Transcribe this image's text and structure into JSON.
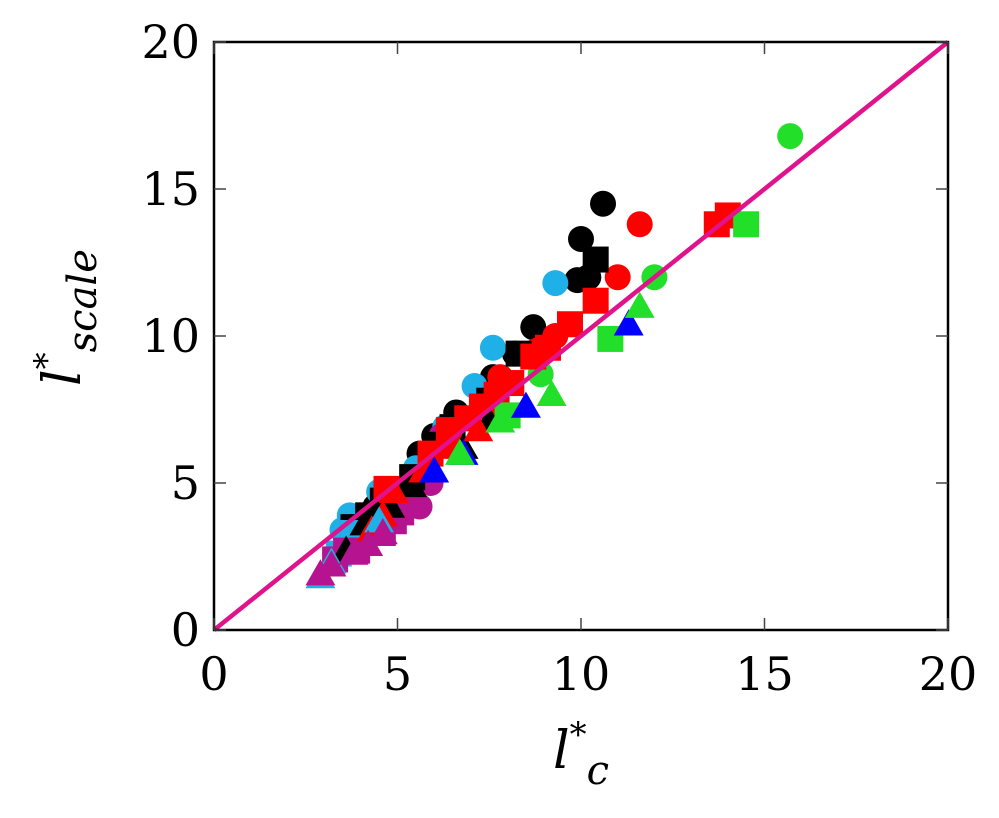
{
  "chart_data": {
    "type": "scatter",
    "title": "",
    "xlabel": {
      "base": "l",
      "sup": "*",
      "sub": "c"
    },
    "ylabel": {
      "base": "l",
      "sup": "*",
      "sub": "scale"
    },
    "xlim": [
      0,
      20
    ],
    "ylim": [
      0,
      20
    ],
    "xticks": [
      0,
      5,
      10,
      15,
      20
    ],
    "yticks": [
      0,
      5,
      10,
      15,
      20
    ],
    "xtick_labels": [
      "0",
      "5",
      "10",
      "15",
      "20"
    ],
    "ytick_labels": [
      "0",
      "5",
      "10",
      "15",
      "20"
    ],
    "grid": false,
    "legend": "none",
    "reference_line": {
      "x": [
        0,
        20
      ],
      "y": [
        0,
        20
      ],
      "color": "#e0138c"
    },
    "series": [
      {
        "marker": "circle",
        "color": "#000000",
        "points": [
          [
            10.6,
            14.5
          ],
          [
            10.0,
            13.3
          ],
          [
            10.2,
            12.0
          ],
          [
            9.9,
            11.9
          ],
          [
            8.7,
            10.3
          ],
          [
            8.2,
            9.4
          ],
          [
            7.6,
            8.6
          ],
          [
            6.6,
            7.4
          ],
          [
            6.0,
            6.6
          ],
          [
            5.6,
            6.0
          ],
          [
            4.7,
            4.7
          ],
          [
            4.4,
            4.2
          ]
        ]
      },
      {
        "marker": "circle",
        "color": "#1fb0e8",
        "points": [
          [
            9.3,
            11.8
          ],
          [
            7.6,
            9.6
          ],
          [
            7.1,
            8.3
          ],
          [
            6.3,
            6.9
          ],
          [
            5.5,
            5.5
          ],
          [
            4.5,
            4.7
          ],
          [
            3.7,
            3.9
          ],
          [
            3.5,
            3.4
          ]
        ]
      },
      {
        "marker": "circle",
        "color": "#ff0000",
        "points": [
          [
            11.6,
            13.8
          ],
          [
            11.0,
            12.0
          ],
          [
            9.3,
            10.0
          ],
          [
            8.8,
            9.5
          ],
          [
            7.8,
            8.6
          ]
        ]
      },
      {
        "marker": "circle",
        "color": "#22e02a",
        "points": [
          [
            15.7,
            16.8
          ],
          [
            12.0,
            12.0
          ],
          [
            8.9,
            8.7
          ]
        ]
      },
      {
        "marker": "circle",
        "color": "#b5138f",
        "points": [
          [
            6.2,
            6.6
          ],
          [
            5.9,
            5.0
          ],
          [
            5.6,
            4.2
          ],
          [
            5.0,
            4.5
          ],
          [
            4.3,
            3.7
          ]
        ]
      },
      {
        "marker": "square",
        "color": "#000000",
        "points": [
          [
            10.4,
            12.6
          ],
          [
            8.3,
            9.4
          ],
          [
            7.5,
            7.8
          ],
          [
            6.5,
            6.9
          ],
          [
            6.1,
            6.3
          ],
          [
            5.4,
            5.2
          ],
          [
            4.6,
            4.4
          ],
          [
            4.2,
            3.9
          ],
          [
            3.8,
            3.5
          ]
        ]
      },
      {
        "marker": "square",
        "color": "#ff0000",
        "points": [
          [
            14.0,
            14.1
          ],
          [
            13.7,
            13.8
          ],
          [
            10.4,
            11.2
          ],
          [
            9.7,
            10.4
          ],
          [
            9.1,
            9.6
          ],
          [
            8.7,
            9.3
          ],
          [
            8.1,
            8.4
          ],
          [
            7.7,
            8.0
          ],
          [
            7.3,
            7.6
          ],
          [
            6.9,
            7.2
          ],
          [
            6.4,
            6.8
          ],
          [
            5.9,
            6.0
          ],
          [
            4.7,
            4.8
          ]
        ]
      },
      {
        "marker": "square",
        "color": "#22e02a",
        "points": [
          [
            14.5,
            13.8
          ],
          [
            10.8,
            9.9
          ],
          [
            8.0,
            7.3
          ]
        ]
      },
      {
        "marker": "square",
        "color": "#1fb0e8",
        "points": [
          [
            3.8,
            3.3
          ],
          [
            3.4,
            2.6
          ]
        ]
      },
      {
        "marker": "square",
        "color": "#b5138f",
        "points": [
          [
            5.1,
            4.0
          ],
          [
            4.9,
            3.7
          ],
          [
            4.6,
            3.3
          ],
          [
            3.9,
            2.7
          ],
          [
            3.6,
            2.7
          ],
          [
            3.3,
            2.4
          ]
        ]
      },
      {
        "marker": "triangle",
        "color": "#000000",
        "points": [
          [
            7.5,
            7.1
          ],
          [
            6.8,
            6.2
          ],
          [
            5.4,
            4.9
          ],
          [
            4.8,
            4.2
          ],
          [
            4.1,
            3.6
          ],
          [
            3.6,
            2.7
          ]
        ]
      },
      {
        "marker": "triangle",
        "color": "#ff0000",
        "points": [
          [
            7.2,
            6.8
          ],
          [
            6.5,
            6.2
          ],
          [
            5.7,
            5.4
          ],
          [
            4.9,
            4.7
          ],
          [
            4.6,
            3.9
          ],
          [
            4.3,
            3.4
          ]
        ]
      },
      {
        "marker": "triangle",
        "color": "#0000ff",
        "points": [
          [
            11.3,
            10.4
          ],
          [
            8.5,
            7.6
          ],
          [
            6.8,
            6.0
          ],
          [
            6.0,
            5.4
          ]
        ]
      },
      {
        "marker": "triangle",
        "color": "#22e02a",
        "points": [
          [
            11.6,
            11.0
          ],
          [
            9.2,
            8.0
          ],
          [
            7.8,
            7.1
          ],
          [
            6.7,
            6.0
          ]
        ]
      },
      {
        "marker": "triangle",
        "color": "#1fb0e8",
        "points": [
          [
            4.5,
            3.7
          ],
          [
            3.2,
            2.3
          ],
          [
            2.9,
            1.8
          ]
        ]
      },
      {
        "marker": "triangle",
        "color": "#b5138f",
        "points": [
          [
            4.6,
            3.3
          ],
          [
            4.2,
            2.9
          ],
          [
            3.8,
            2.6
          ],
          [
            3.2,
            2.2
          ],
          [
            2.9,
            1.9
          ]
        ]
      }
    ]
  }
}
